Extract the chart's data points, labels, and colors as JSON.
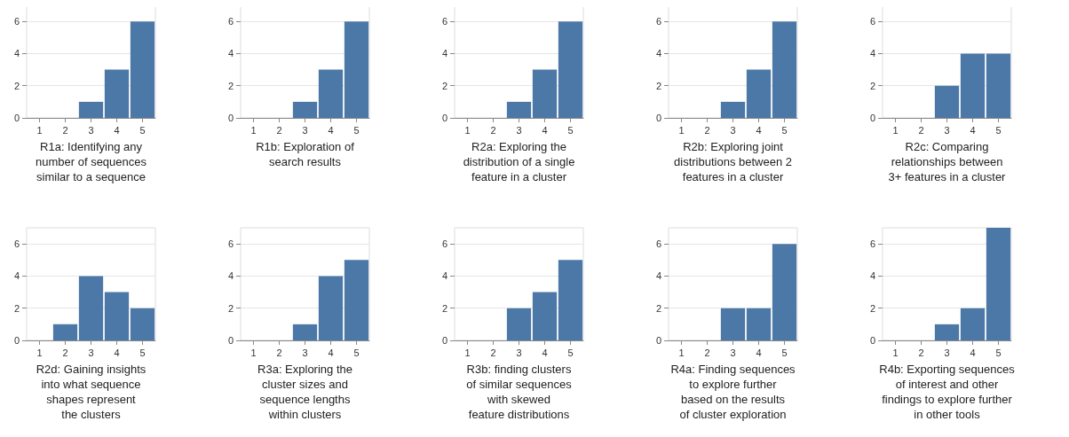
{
  "chart_data": [
    {
      "type": "bar",
      "categories": [
        "1",
        "2",
        "3",
        "4",
        "5"
      ],
      "values": [
        0,
        0,
        1,
        3,
        6
      ],
      "color": "#4c78a8",
      "xlabel": "R1a: Identifying any\nnumber of sequences\nsimilar to a sequence",
      "ylim": [
        0,
        7
      ],
      "yticks": [
        0,
        2,
        4,
        6
      ],
      "grid": "y"
    },
    {
      "type": "bar",
      "categories": [
        "1",
        "2",
        "3",
        "4",
        "5"
      ],
      "values": [
        0,
        0,
        1,
        3,
        6
      ],
      "color": "#4c78a8",
      "xlabel": "R1b: Exploration of\nsearch results",
      "ylim": [
        0,
        7
      ],
      "yticks": [
        0,
        2,
        4,
        6
      ],
      "grid": "y"
    },
    {
      "type": "bar",
      "categories": [
        "1",
        "2",
        "3",
        "4",
        "5"
      ],
      "values": [
        0,
        0,
        1,
        3,
        6
      ],
      "color": "#4c78a8",
      "xlabel": "R2a: Exploring the\ndistribution of a single\nfeature in a cluster",
      "ylim": [
        0,
        7
      ],
      "yticks": [
        0,
        2,
        4,
        6
      ],
      "grid": "y"
    },
    {
      "type": "bar",
      "categories": [
        "1",
        "2",
        "3",
        "4",
        "5"
      ],
      "values": [
        0,
        0,
        1,
        3,
        6
      ],
      "color": "#4c78a8",
      "xlabel": "R2b: Exploring joint\ndistributions between 2\nfeatures in a cluster",
      "ylim": [
        0,
        7
      ],
      "yticks": [
        0,
        2,
        4,
        6
      ],
      "grid": "y"
    },
    {
      "type": "bar",
      "categories": [
        "1",
        "2",
        "3",
        "4",
        "5"
      ],
      "values": [
        0,
        0,
        2,
        4,
        4
      ],
      "color": "#4c78a8",
      "xlabel": "R2c: Comparing\nrelationships between\n3+ features in a cluster",
      "ylim": [
        0,
        7
      ],
      "yticks": [
        0,
        2,
        4,
        6
      ],
      "grid": "y"
    },
    {
      "type": "bar",
      "categories": [
        "1",
        "2",
        "3",
        "4",
        "5"
      ],
      "values": [
        0,
        1,
        4,
        3,
        2
      ],
      "color": "#4c78a8",
      "xlabel": "R2d: Gaining insights\ninto what sequence\nshapes represent\nthe clusters",
      "ylim": [
        0,
        7
      ],
      "yticks": [
        0,
        2,
        4,
        6
      ],
      "grid": "y"
    },
    {
      "type": "bar",
      "categories": [
        "1",
        "2",
        "3",
        "4",
        "5"
      ],
      "values": [
        0,
        0,
        1,
        4,
        5
      ],
      "color": "#4c78a8",
      "xlabel": "R3a: Exploring the\ncluster sizes and\nsequence lengths\nwithin clusters",
      "ylim": [
        0,
        7
      ],
      "yticks": [
        0,
        2,
        4,
        6
      ],
      "grid": "y"
    },
    {
      "type": "bar",
      "categories": [
        "1",
        "2",
        "3",
        "4",
        "5"
      ],
      "values": [
        0,
        0,
        2,
        3,
        5
      ],
      "color": "#4c78a8",
      "xlabel": "R3b: finding clusters\nof similar sequences\nwith skewed\nfeature distributions",
      "ylim": [
        0,
        7
      ],
      "yticks": [
        0,
        2,
        4,
        6
      ],
      "grid": "y"
    },
    {
      "type": "bar",
      "categories": [
        "1",
        "2",
        "3",
        "4",
        "5"
      ],
      "values": [
        0,
        0,
        2,
        2,
        6
      ],
      "color": "#4c78a8",
      "xlabel": "R4a: Finding sequences\nto explore further\nbased on the results\nof cluster exploration",
      "ylim": [
        0,
        7
      ],
      "yticks": [
        0,
        2,
        4,
        6
      ],
      "grid": "y"
    },
    {
      "type": "bar",
      "categories": [
        "1",
        "2",
        "3",
        "4",
        "5"
      ],
      "values": [
        0,
        0,
        1,
        2,
        7
      ],
      "color": "#4c78a8",
      "xlabel": "R4b: Exporting sequences\nof interest and other\nfindings to explore further\nin other tools",
      "ylim": [
        0,
        7
      ],
      "yticks": [
        0,
        2,
        4,
        6
      ],
      "grid": "y"
    }
  ]
}
